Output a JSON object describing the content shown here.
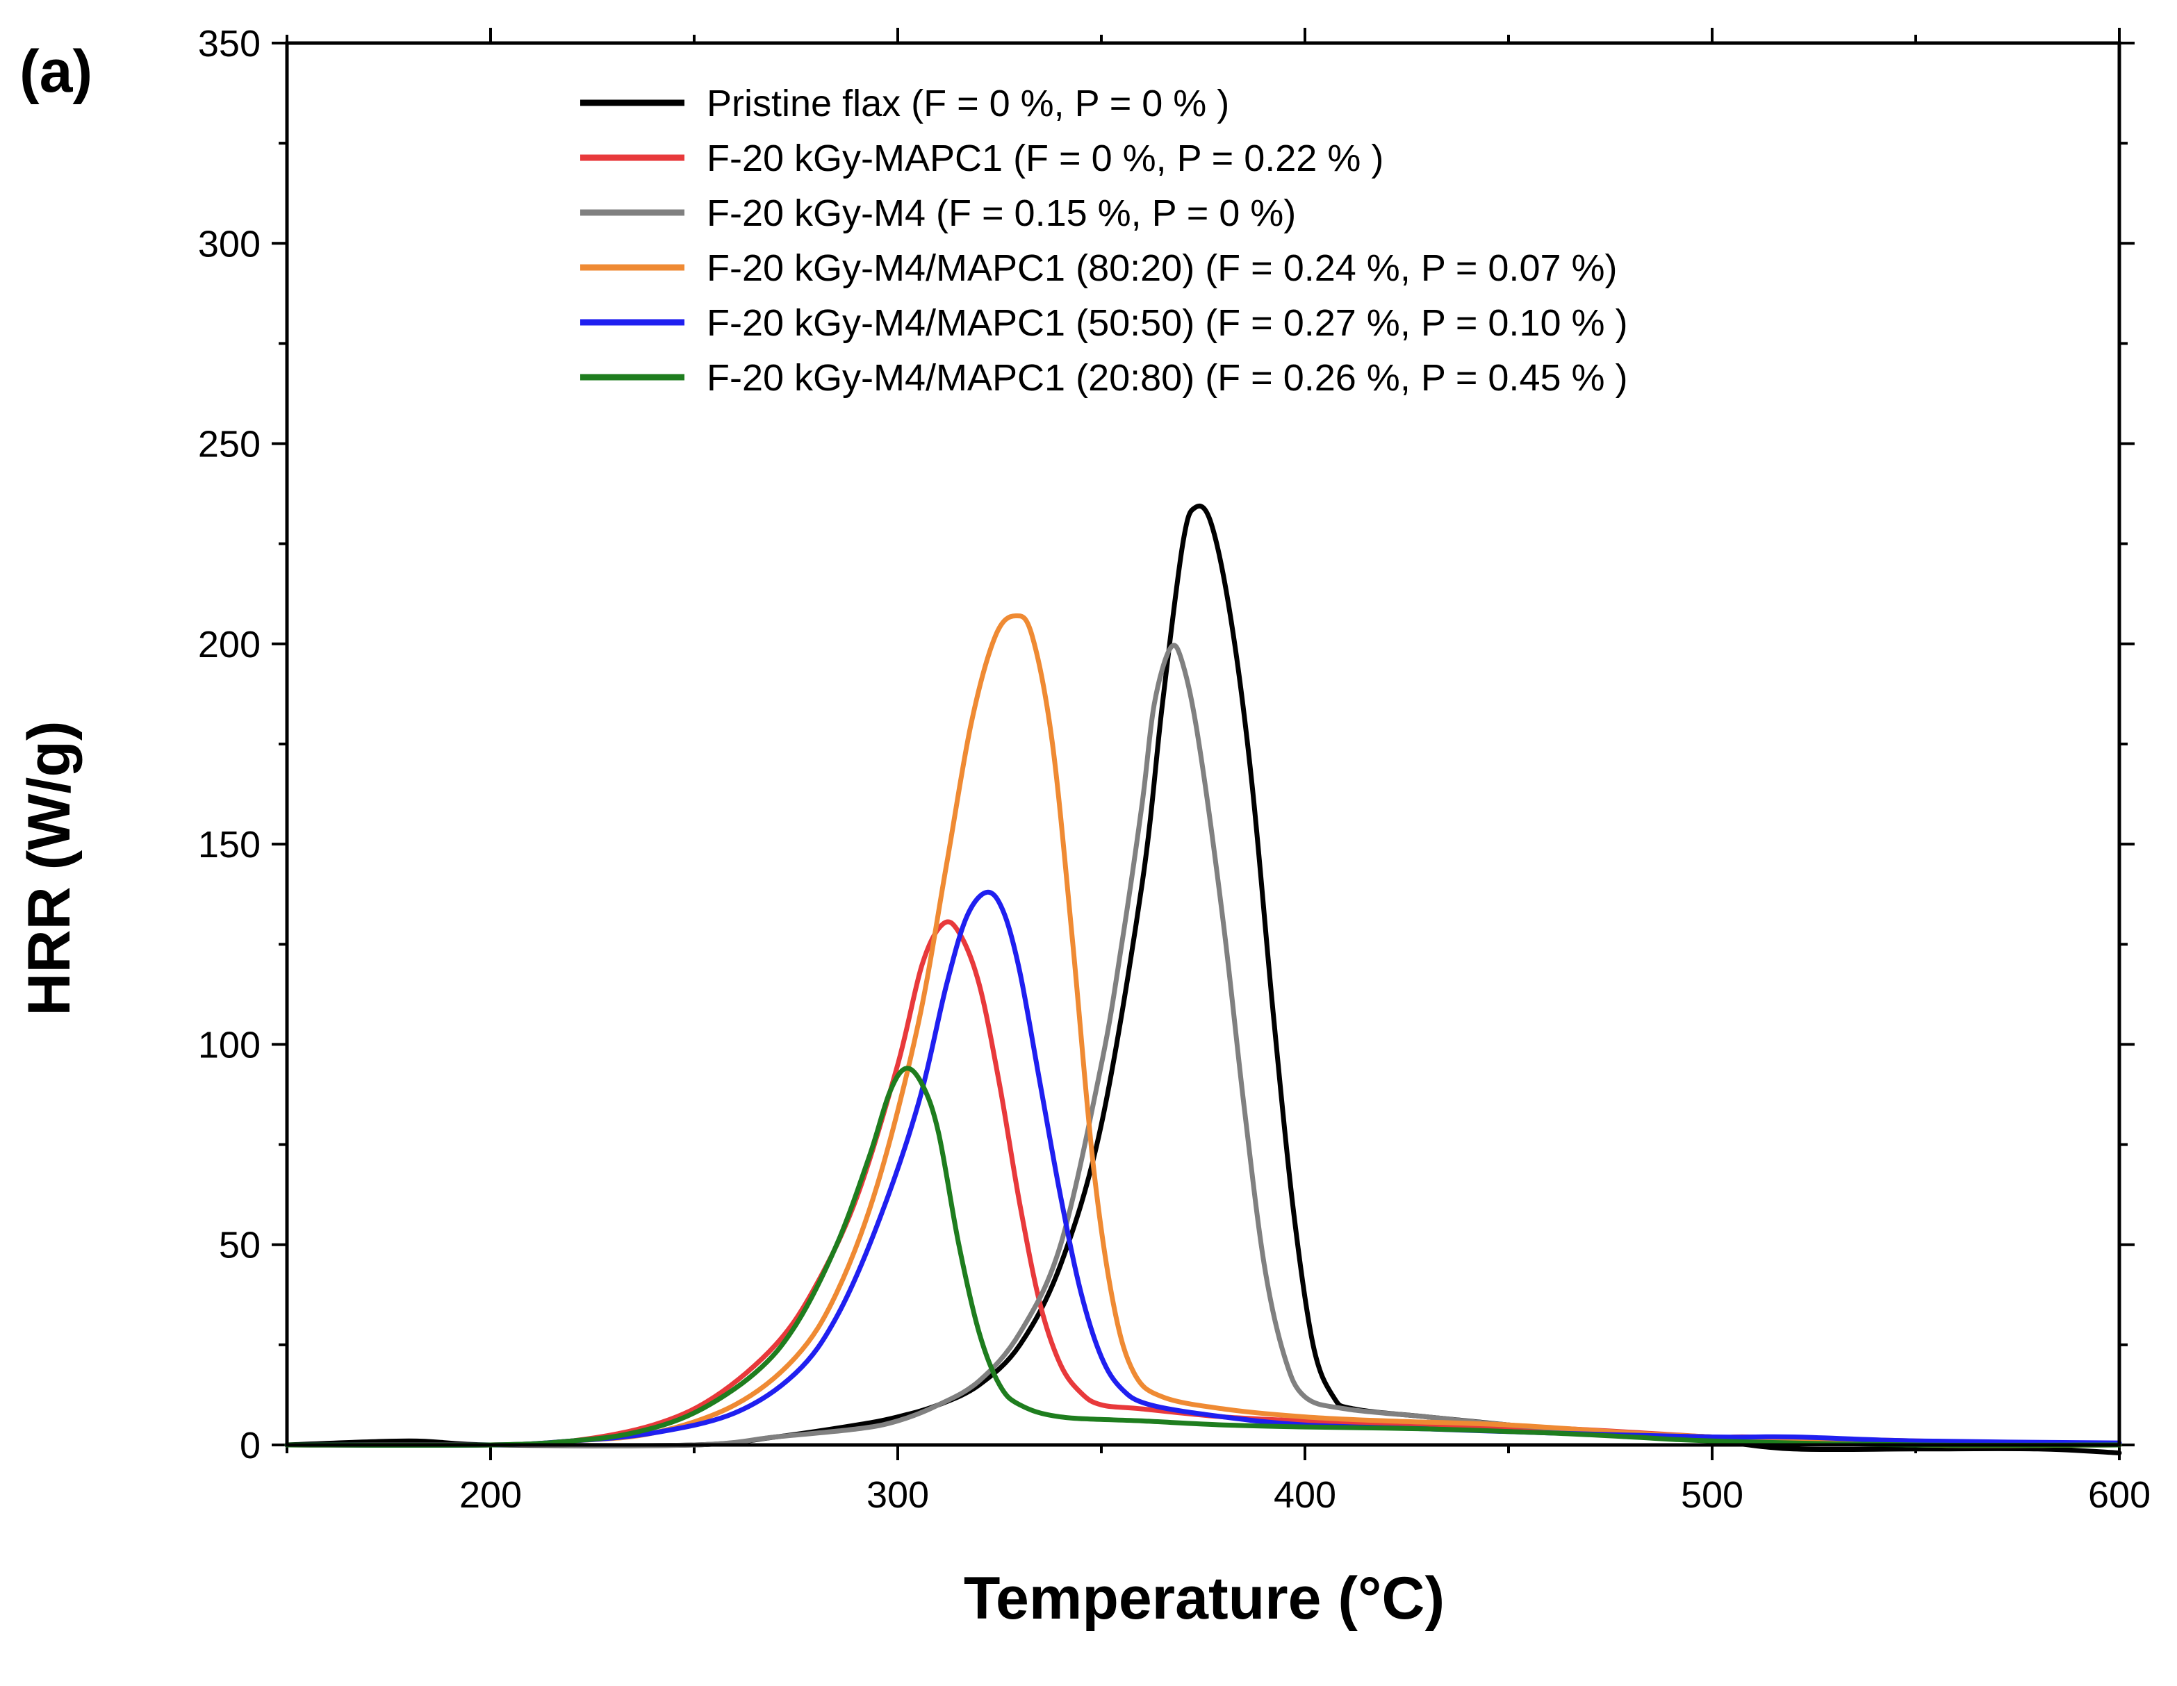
{
  "chart_data": {
    "type": "line",
    "panel_label": "(a)",
    "xlabel": "Temperature (°C)",
    "ylabel": "HRR (W/g)",
    "xlim": [
      150,
      600
    ],
    "ylim": [
      0,
      350
    ],
    "xticks": [
      200,
      300,
      400,
      500,
      600
    ],
    "yticks": [
      0,
      50,
      100,
      150,
      200,
      250,
      300,
      350
    ],
    "x_minor_step": 50,
    "y_minor_step": 25,
    "legend_position": "top-center",
    "series": [
      {
        "name": "Pristine flax (F = 0 %, P = 0 % )",
        "color": "#000000",
        "points": [
          [
            150,
            0
          ],
          [
            180,
            1
          ],
          [
            200,
            0
          ],
          [
            250,
            0
          ],
          [
            270,
            2
          ],
          [
            290,
            5
          ],
          [
            300,
            7
          ],
          [
            310,
            10
          ],
          [
            320,
            15
          ],
          [
            330,
            25
          ],
          [
            340,
            45
          ],
          [
            350,
            80
          ],
          [
            360,
            140
          ],
          [
            365,
            185
          ],
          [
            370,
            225
          ],
          [
            373,
            234
          ],
          [
            377,
            230
          ],
          [
            382,
            205
          ],
          [
            387,
            165
          ],
          [
            392,
            110
          ],
          [
            397,
            60
          ],
          [
            402,
            25
          ],
          [
            407,
            12
          ],
          [
            412,
            9
          ],
          [
            430,
            7
          ],
          [
            450,
            5
          ],
          [
            470,
            3
          ],
          [
            500,
            1
          ],
          [
            520,
            -1
          ],
          [
            550,
            -1
          ],
          [
            580,
            -1
          ],
          [
            600,
            -2
          ]
        ]
      },
      {
        "name": "F-20 kGy-MAPC1 (F = 0 %, P = 0.22 % )",
        "color": "#e8393b",
        "points": [
          [
            150,
            0
          ],
          [
            200,
            0
          ],
          [
            220,
            1
          ],
          [
            240,
            5
          ],
          [
            255,
            12
          ],
          [
            270,
            25
          ],
          [
            280,
            40
          ],
          [
            290,
            62
          ],
          [
            300,
            95
          ],
          [
            306,
            120
          ],
          [
            311,
            130
          ],
          [
            315,
            128
          ],
          [
            320,
            115
          ],
          [
            325,
            90
          ],
          [
            330,
            60
          ],
          [
            335,
            35
          ],
          [
            340,
            20
          ],
          [
            345,
            13
          ],
          [
            350,
            10
          ],
          [
            360,
            9
          ],
          [
            380,
            7
          ],
          [
            400,
            6
          ],
          [
            430,
            5
          ],
          [
            465,
            4
          ],
          [
            500,
            2
          ],
          [
            510,
            2
          ],
          [
            550,
            1
          ],
          [
            600,
            0
          ]
        ]
      },
      {
        "name": "F-20 kGy-M4 (F = 0.15 %, P = 0 %)",
        "color": "#808080",
        "points": [
          [
            150,
            0
          ],
          [
            200,
            0
          ],
          [
            250,
            0
          ],
          [
            270,
            2
          ],
          [
            290,
            4
          ],
          [
            300,
            6
          ],
          [
            310,
            10
          ],
          [
            320,
            16
          ],
          [
            330,
            28
          ],
          [
            340,
            50
          ],
          [
            350,
            95
          ],
          [
            355,
            125
          ],
          [
            360,
            160
          ],
          [
            363,
            185
          ],
          [
            367,
            199
          ],
          [
            370,
            195
          ],
          [
            374,
            175
          ],
          [
            380,
            130
          ],
          [
            385,
            85
          ],
          [
            390,
            45
          ],
          [
            395,
            22
          ],
          [
            400,
            12
          ],
          [
            410,
            9
          ],
          [
            430,
            7
          ],
          [
            450,
            5
          ],
          [
            480,
            3
          ],
          [
            500,
            2
          ],
          [
            550,
            0
          ],
          [
            600,
            0
          ]
        ]
      },
      {
        "name": "F-20 kGy-M4/MAPC1 (80:20) (F = 0.24 %, P = 0.07 %)",
        "color": "#ef8a33",
        "points": [
          [
            150,
            0
          ],
          [
            200,
            0
          ],
          [
            220,
            1
          ],
          [
            240,
            3
          ],
          [
            260,
            10
          ],
          [
            275,
            22
          ],
          [
            285,
            38
          ],
          [
            295,
            65
          ],
          [
            305,
            105
          ],
          [
            312,
            145
          ],
          [
            318,
            180
          ],
          [
            324,
            202
          ],
          [
            329,
            207
          ],
          [
            333,
            202
          ],
          [
            338,
            175
          ],
          [
            343,
            125
          ],
          [
            348,
            70
          ],
          [
            353,
            35
          ],
          [
            358,
            18
          ],
          [
            365,
            12
          ],
          [
            380,
            9
          ],
          [
            400,
            7
          ],
          [
            420,
            6
          ],
          [
            450,
            5
          ],
          [
            480,
            3
          ],
          [
            500,
            2
          ],
          [
            550,
            0
          ],
          [
            600,
            0
          ]
        ]
      },
      {
        "name": "F-20 kGy-M4/MAPC1 (50:50) (F = 0.27 %, P = 0.10 % )",
        "color": "#1f1ff0",
        "points": [
          [
            150,
            0
          ],
          [
            200,
            0
          ],
          [
            220,
            1
          ],
          [
            240,
            3
          ],
          [
            260,
            8
          ],
          [
            275,
            18
          ],
          [
            285,
            32
          ],
          [
            295,
            55
          ],
          [
            305,
            85
          ],
          [
            312,
            115
          ],
          [
            317,
            132
          ],
          [
            322,
            138
          ],
          [
            326,
            133
          ],
          [
            330,
            118
          ],
          [
            335,
            90
          ],
          [
            340,
            62
          ],
          [
            345,
            38
          ],
          [
            350,
            22
          ],
          [
            355,
            14
          ],
          [
            362,
            10
          ],
          [
            380,
            7
          ],
          [
            400,
            5
          ],
          [
            430,
            4
          ],
          [
            460,
            3
          ],
          [
            500,
            2
          ],
          [
            520,
            2
          ],
          [
            550,
            1
          ],
          [
            600,
            0.5
          ]
        ]
      },
      {
        "name": "F-20 kGy-M4/MAPC1 (20:80) (F = 0.26 %, P = 0.45 % )",
        "color": "#1e7d1e",
        "points": [
          [
            150,
            0
          ],
          [
            200,
            0
          ],
          [
            220,
            1
          ],
          [
            235,
            3
          ],
          [
            250,
            8
          ],
          [
            265,
            18
          ],
          [
            275,
            30
          ],
          [
            285,
            50
          ],
          [
            293,
            72
          ],
          [
            298,
            88
          ],
          [
            302,
            94
          ],
          [
            306,
            90
          ],
          [
            310,
            78
          ],
          [
            315,
            50
          ],
          [
            320,
            28
          ],
          [
            325,
            15
          ],
          [
            330,
            10
          ],
          [
            340,
            7
          ],
          [
            360,
            6
          ],
          [
            380,
            5
          ],
          [
            400,
            4.5
          ],
          [
            430,
            4
          ],
          [
            460,
            3
          ],
          [
            480,
            2
          ],
          [
            500,
            1
          ],
          [
            550,
            0
          ],
          [
            600,
            0
          ]
        ]
      }
    ]
  }
}
